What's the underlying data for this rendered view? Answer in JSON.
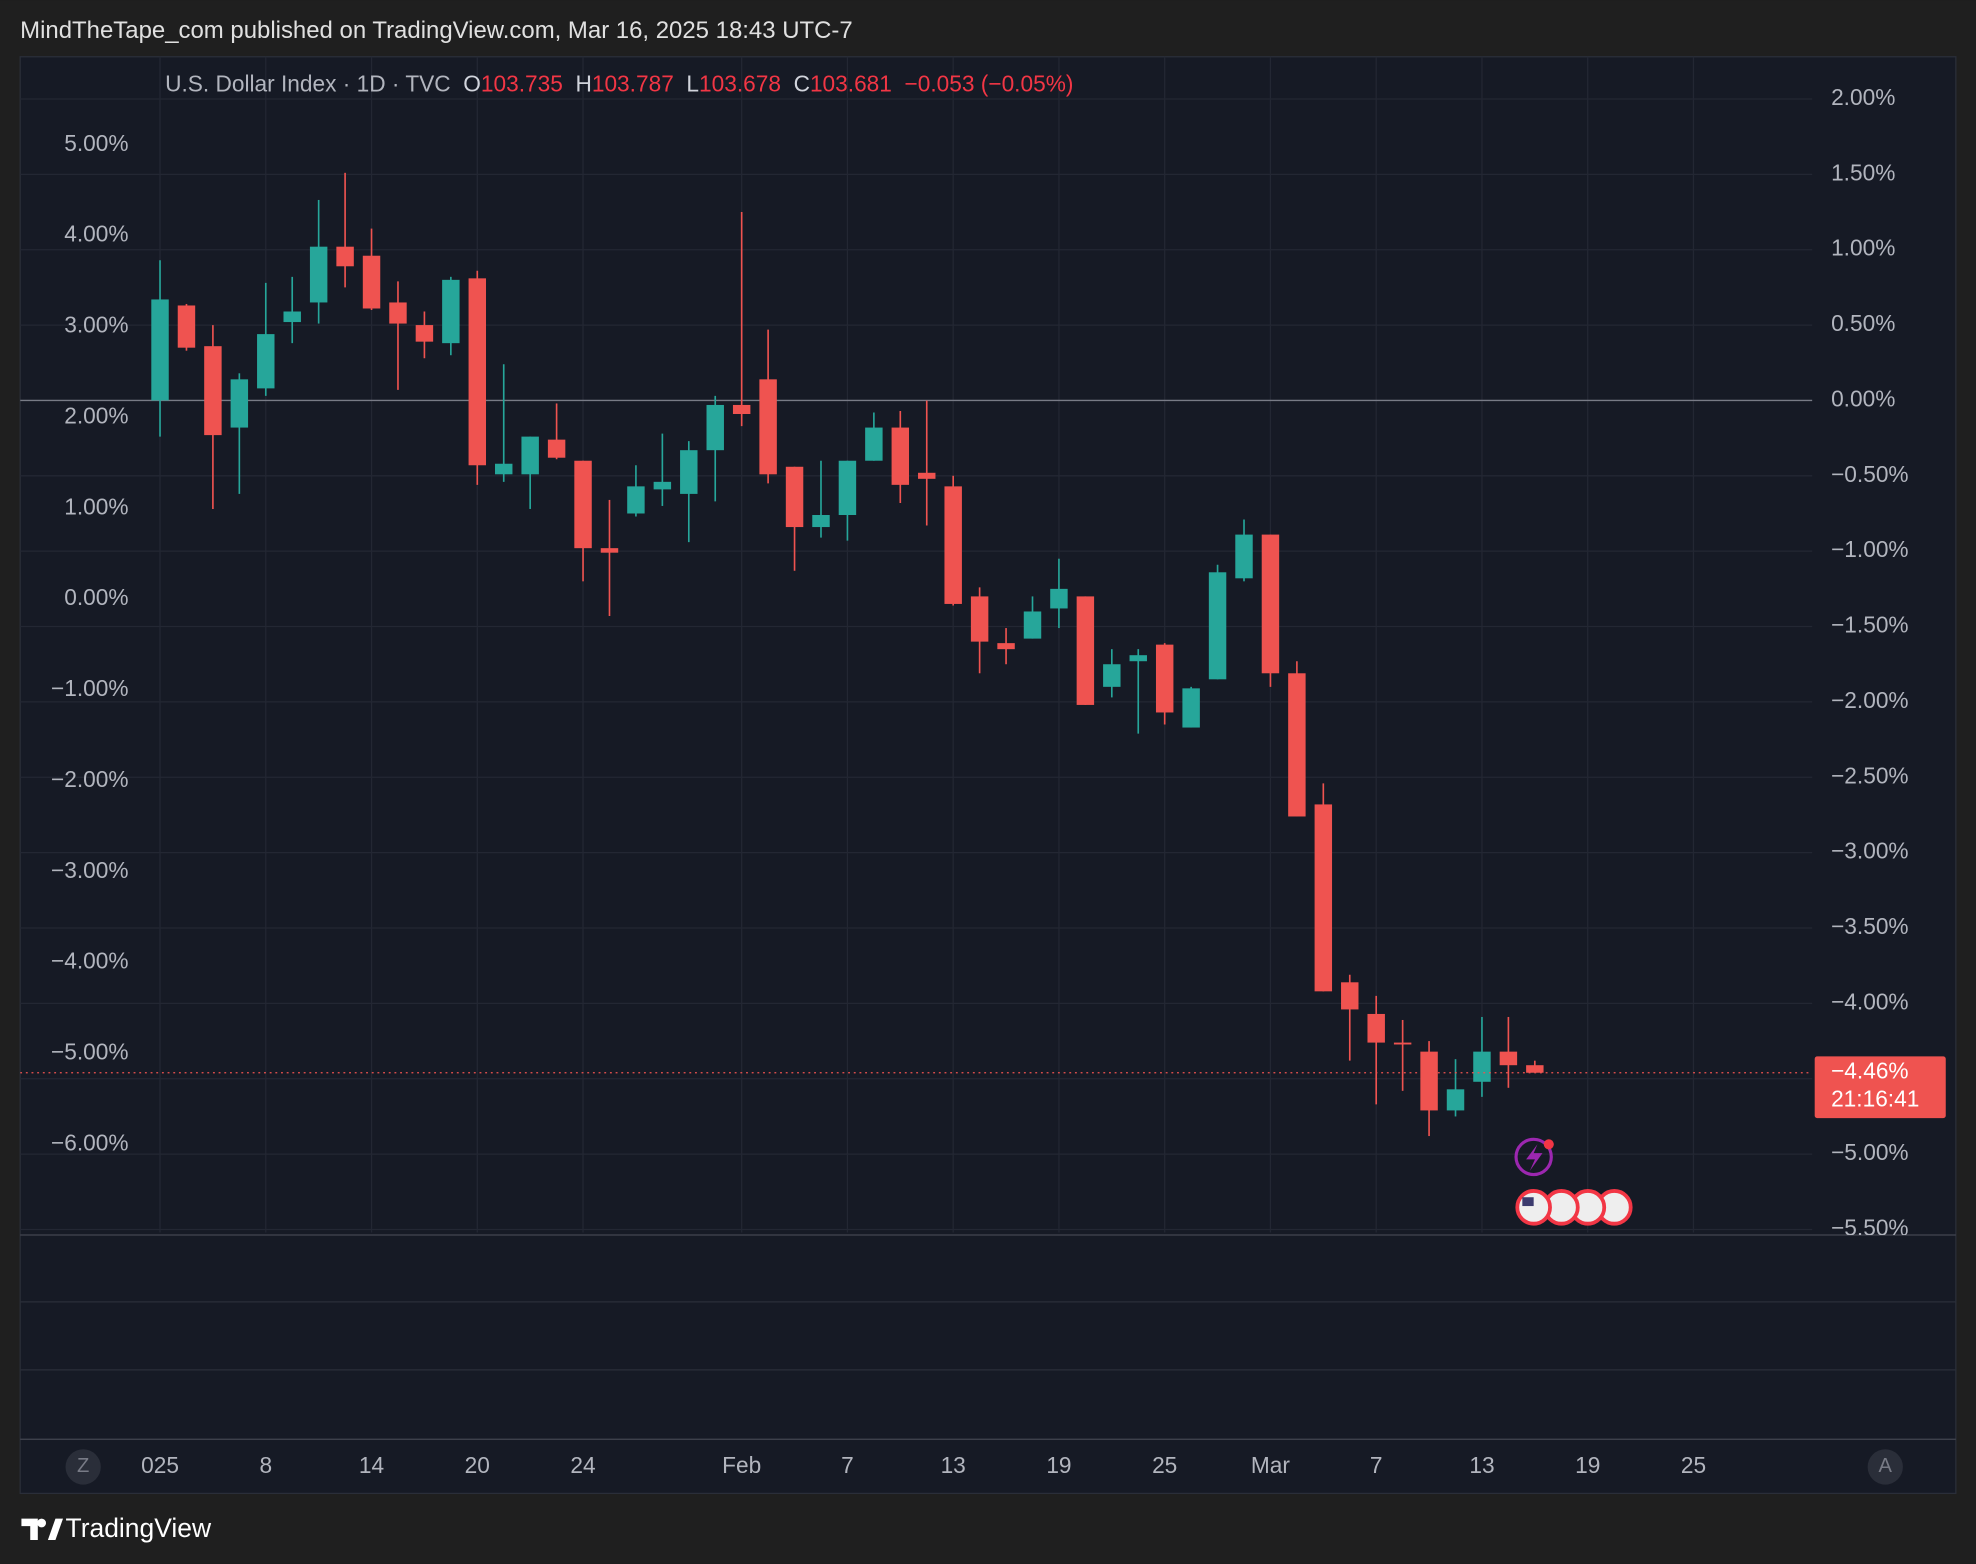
{
  "header": {
    "text": "MindTheTape_com published on TradingView.com, Mar 16, 2025 18:43 UTC-7"
  },
  "legend": {
    "symbol": "U.S. Dollar Index · 1D · TVC",
    "o_key": "O",
    "o": "103.735",
    "h_key": "H",
    "h": "103.787",
    "l_key": "L",
    "l": "103.678",
    "c_key": "C",
    "c": "103.681",
    "change": "−0.053 (−0.05%)"
  },
  "chart_data": {
    "type": "candlestick",
    "x": [
      0,
      1,
      2,
      3,
      4,
      5,
      6,
      7,
      8,
      9,
      10,
      11,
      12,
      13,
      14,
      15,
      16,
      17,
      18,
      19,
      20,
      21,
      22,
      23,
      24,
      25,
      26,
      27,
      28,
      29,
      30,
      31,
      32,
      33,
      34,
      35,
      36,
      37,
      38,
      39,
      40,
      41,
      42,
      43,
      44,
      45,
      46,
      47,
      48,
      49,
      50,
      51,
      52
    ],
    "open": [
      0.0,
      0.63,
      0.36,
      -0.18,
      0.08,
      0.52,
      0.65,
      1.02,
      0.96,
      0.65,
      0.5,
      0.38,
      0.81,
      -0.49,
      -0.49,
      -0.26,
      -0.4,
      -0.98,
      -0.75,
      -0.59,
      -0.62,
      -0.33,
      -0.03,
      0.14,
      -0.44,
      -0.84,
      -0.76,
      -0.4,
      -0.18,
      -0.48,
      -0.57,
      -1.3,
      -1.61,
      -1.58,
      -1.38,
      -1.3,
      -1.9,
      -1.73,
      -1.62,
      -2.17,
      -1.85,
      -1.18,
      -0.89,
      -1.81,
      -2.68,
      -3.86,
      -4.07,
      -4.26,
      -4.32,
      -4.71,
      -4.52,
      -4.32,
      -4.41
    ],
    "high": [
      0.93,
      0.64,
      0.5,
      0.18,
      0.78,
      0.82,
      1.33,
      1.51,
      1.14,
      0.79,
      0.59,
      0.82,
      0.86,
      0.24,
      -0.24,
      -0.02,
      -0.4,
      -0.66,
      -0.43,
      -0.22,
      -0.27,
      0.03,
      1.25,
      0.47,
      -0.44,
      -0.4,
      -0.4,
      -0.08,
      -0.07,
      0.0,
      -0.5,
      -1.24,
      -1.51,
      -1.3,
      -1.05,
      -1.3,
      -1.65,
      -1.65,
      -1.61,
      -1.9,
      -1.09,
      -0.79,
      -0.89,
      -1.73,
      -2.54,
      -3.81,
      -3.95,
      -4.11,
      -4.25,
      -4.37,
      -4.09,
      -4.09,
      -4.38
    ],
    "low": [
      -0.24,
      0.33,
      -0.72,
      -0.62,
      0.03,
      0.38,
      0.51,
      0.75,
      0.6,
      0.07,
      0.28,
      0.3,
      -0.56,
      -0.54,
      -0.72,
      -0.39,
      -1.2,
      -1.43,
      -0.77,
      -0.7,
      -0.94,
      -0.67,
      -0.17,
      -0.55,
      -1.13,
      -0.91,
      -0.93,
      -0.4,
      -0.68,
      -0.83,
      -1.36,
      -1.81,
      -1.75,
      -1.58,
      -1.51,
      -2.02,
      -1.97,
      -2.21,
      -2.15,
      -2.17,
      -1.85,
      -1.2,
      -1.9,
      -2.76,
      -3.92,
      -4.38,
      -4.67,
      -4.58,
      -4.88,
      -4.75,
      -4.62,
      -4.56,
      -4.46
    ],
    "close": [
      0.67,
      0.35,
      -0.23,
      0.14,
      0.44,
      0.59,
      1.02,
      0.89,
      0.61,
      0.51,
      0.39,
      0.8,
      -0.43,
      -0.42,
      -0.24,
      -0.38,
      -0.98,
      -1.01,
      -0.57,
      -0.54,
      -0.33,
      -0.03,
      -0.09,
      -0.49,
      -0.84,
      -0.76,
      -0.4,
      -0.18,
      -0.56,
      -0.52,
      -1.35,
      -1.6,
      -1.65,
      -1.4,
      -1.25,
      -2.02,
      -1.75,
      -1.69,
      -2.07,
      -1.91,
      -1.14,
      -0.89,
      -1.81,
      -2.76,
      -3.92,
      -4.04,
      -4.26,
      -4.27,
      -4.71,
      -4.57,
      -4.32,
      -4.41,
      -4.46
    ],
    "up_color": "#26a69a",
    "down_color": "#ef5350",
    "xlim": [
      -5.29,
      62.49
    ],
    "xticks": [
      {
        "value": 0,
        "label": "025"
      },
      {
        "value": 4,
        "label": "8"
      },
      {
        "value": 8,
        "label": "14"
      },
      {
        "value": 12,
        "label": "20"
      },
      {
        "value": 16,
        "label": "24"
      },
      {
        "value": 22,
        "label": "Feb"
      },
      {
        "value": 26,
        "label": "7"
      },
      {
        "value": 30,
        "label": "13"
      },
      {
        "value": 34,
        "label": "19"
      },
      {
        "value": 38,
        "label": "25"
      },
      {
        "value": 42,
        "label": "Mar"
      },
      {
        "value": 46,
        "label": "7"
      },
      {
        "value": 50,
        "label": "13"
      },
      {
        "value": 54,
        "label": "19"
      },
      {
        "value": 58,
        "label": "25"
      }
    ],
    "ylim": [
      -5.52,
      2.28
    ],
    "yticks": [
      {
        "value": 2,
        "label": "2.00%"
      },
      {
        "value": 1.5,
        "label": "1.50%"
      },
      {
        "value": 1,
        "label": "1.00%"
      },
      {
        "value": 0.5,
        "label": "0.50%"
      },
      {
        "value": 0,
        "label": "0.00%"
      },
      {
        "value": -0.5,
        "label": "−0.50%"
      },
      {
        "value": -1,
        "label": "−1.00%"
      },
      {
        "value": -1.5,
        "label": "−1.50%"
      },
      {
        "value": -2,
        "label": "−2.00%"
      },
      {
        "value": -2.5,
        "label": "−2.50%"
      },
      {
        "value": -3,
        "label": "−3.00%"
      },
      {
        "value": -3.5,
        "label": "−3.50%"
      },
      {
        "value": -4,
        "label": "−4.00%"
      },
      {
        "value": -4.5,
        "label": "−4.50%"
      },
      {
        "value": -5,
        "label": "−5.00%"
      },
      {
        "value": -5.5,
        "label": "−5.50%"
      }
    ],
    "y2lim": [
      -6.97,
      5.97
    ],
    "y2ticks": [
      {
        "value": 5,
        "label": "5.00%"
      },
      {
        "value": 4,
        "label": "4.00%"
      },
      {
        "value": 3,
        "label": "3.00%"
      },
      {
        "value": 2,
        "label": "2.00%"
      },
      {
        "value": 1,
        "label": "1.00%"
      },
      {
        "value": 0,
        "label": "0.00%"
      },
      {
        "value": -1,
        "label": "−1.00%"
      },
      {
        "value": -2,
        "label": "−2.00%"
      },
      {
        "value": -3,
        "label": "−3.00%"
      },
      {
        "value": -4,
        "label": "−4.00%"
      },
      {
        "value": -5,
        "label": "−5.00%"
      },
      {
        "value": -6,
        "label": "−6.00%"
      }
    ],
    "grid": true,
    "last_label": "−4.46%",
    "countdown": "21:16:41"
  },
  "buttons": {
    "left": "Z",
    "right": "A"
  },
  "footer": {
    "brand": "TradingView"
  }
}
